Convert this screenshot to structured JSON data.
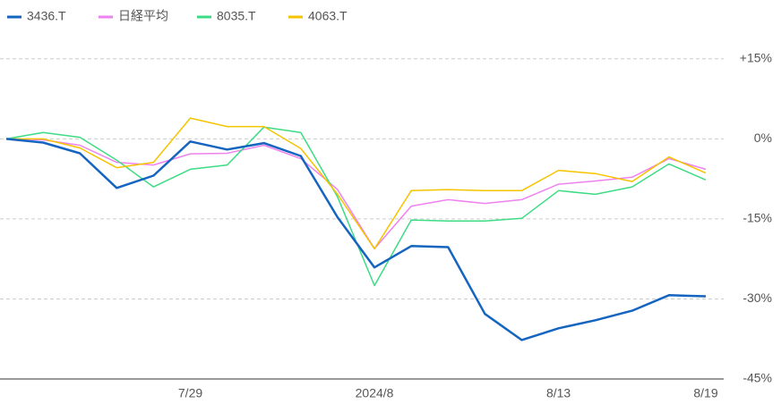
{
  "chart_data": {
    "type": "line",
    "categories": [
      null,
      null,
      null,
      null,
      null,
      "7/29",
      null,
      null,
      null,
      null,
      "2024/8",
      null,
      null,
      null,
      null,
      "8/13",
      null,
      null,
      null,
      "8/19"
    ],
    "series": [
      {
        "name": "3436.T",
        "color": "#1565c0",
        "values": [
          0,
          -0.7,
          -2.7,
          -9.2,
          -6.9,
          -0.5,
          -2.0,
          -0.8,
          -3.2,
          -14.7,
          -24.1,
          -20.1,
          -20.3,
          -32.8,
          -37.7,
          -35.5,
          -34.0,
          -32.2,
          -29.3,
          -29.5
        ]
      },
      {
        "name": "日経平均",
        "color": "#ee82ee",
        "values": [
          0,
          -0.2,
          -1.2,
          -4.4,
          -4.9,
          -2.8,
          -2.7,
          -1.2,
          -3.7,
          -9.5,
          -20.6,
          -12.6,
          -11.4,
          -12.1,
          -11.4,
          -8.5,
          -7.9,
          -7.2,
          -3.7,
          -5.7
        ]
      },
      {
        "name": "8035.T",
        "color": "#3ddc84",
        "values": [
          0,
          1.2,
          0.3,
          -4.0,
          -9.0,
          -5.7,
          -4.9,
          2.2,
          1.2,
          -10.9,
          -27.5,
          -15.2,
          -15.4,
          -15.4,
          -14.9,
          -9.7,
          -10.4,
          -9.0,
          -4.7,
          -7.7
        ]
      },
      {
        "name": "4063.T",
        "color": "#f5c400",
        "values": [
          0,
          0,
          -1.7,
          -5.4,
          -4.4,
          3.9,
          2.3,
          2.3,
          -1.8,
          -10.4,
          -20.6,
          -9.7,
          -9.5,
          -9.7,
          -9.7,
          -5.9,
          -6.5,
          -8.0,
          -3.4,
          -6.4
        ]
      }
    ],
    "ylim": [
      -45,
      18.4
    ],
    "yticks": [
      {
        "value": 15,
        "label": "+15%"
      },
      {
        "value": 0,
        "label": "0%"
      },
      {
        "value": -15,
        "label": "-15%"
      },
      {
        "value": -30,
        "label": "-30%"
      },
      {
        "value": -45,
        "label": "-45%"
      }
    ],
    "grid": true
  }
}
